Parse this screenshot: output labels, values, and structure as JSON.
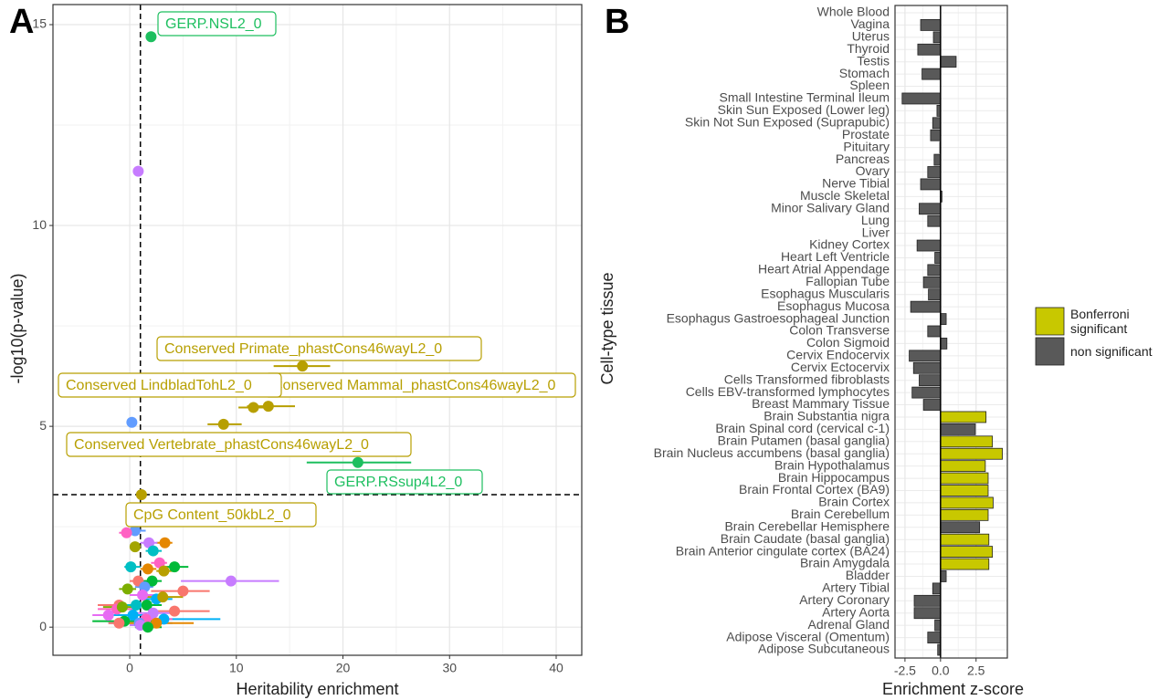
{
  "chart_data": [
    {
      "type": "scatter",
      "panel": "A",
      "xlabel": "Heritability enrichment",
      "ylabel": "-log10(p-value)",
      "xlim": [
        -7.2,
        42.4
      ],
      "ylim": [
        -0.7,
        15.5
      ],
      "xticks": [
        0,
        10,
        20,
        30,
        40
      ],
      "yticks": [
        0,
        5,
        10,
        15
      ],
      "vline": 1,
      "hline": 3.3,
      "grid": true,
      "points": [
        {
          "label": "GERP.NSL2_0",
          "x": 2,
          "y": 14.7,
          "color": "#1dbf5f"
        },
        {
          "x": 0.8,
          "y": 11.35,
          "color": "#c77cff"
        },
        {
          "label": "Conserved Primate_phastCons46wayL2_0",
          "x": 16.2,
          "y": 6.5,
          "xmin": 13.5,
          "xmax": 18.8,
          "color": "#b79f00"
        },
        {
          "label": "Conserved Mammal_phastCons46wayL2_0",
          "x": 13,
          "y": 5.5,
          "xmin": 11,
          "xmax": 15.5,
          "color": "#b79f00"
        },
        {
          "label": "Conserved LindbladTohL2_0",
          "x": 11.6,
          "y": 5.47,
          "xmin": 10.2,
          "xmax": 13,
          "color": "#b79f00"
        },
        {
          "label": "Conserved Vertebrate_phastCons46wayL2_0",
          "x": 8.8,
          "y": 5.05,
          "xmin": 7.3,
          "xmax": 10.5,
          "color": "#b79f00"
        },
        {
          "x": 0.2,
          "y": 5.1,
          "color": "#619cff"
        },
        {
          "label": "GERP.RSsup4L2_0",
          "x": 21.4,
          "y": 4.1,
          "xmin": 16.6,
          "xmax": 26.4,
          "color": "#1dbf5f"
        },
        {
          "label": "CpG Content_50kbL2_0",
          "x": 1.1,
          "y": 3.3,
          "color": "#b79f00"
        },
        {
          "x": 0.5,
          "y": 2.4,
          "xmin": -0.5,
          "xmax": 1.5,
          "color": "#619cff"
        },
        {
          "x": -0.3,
          "y": 2.35,
          "xmin": -1,
          "xmax": 0.5,
          "color": "#ff61c3"
        },
        {
          "x": 3.3,
          "y": 2.1,
          "xmin": 2.5,
          "xmax": 4,
          "color": "#e58700"
        },
        {
          "x": 1.8,
          "y": 2.1,
          "xmin": 1,
          "xmax": 2.6,
          "color": "#c77cff"
        },
        {
          "x": 0.5,
          "y": 2.0,
          "xmin": 0,
          "xmax": 1,
          "color": "#a3a500"
        },
        {
          "x": 2.2,
          "y": 1.9,
          "xmin": 1.5,
          "xmax": 3,
          "color": "#00bfc4"
        },
        {
          "x": 2.8,
          "y": 1.6,
          "xmin": 2,
          "xmax": 3.5,
          "color": "#ff61c3"
        },
        {
          "x": 4.2,
          "y": 1.5,
          "xmin": 3,
          "xmax": 5.5,
          "color": "#00ba38"
        },
        {
          "x": 0.1,
          "y": 1.5,
          "xmin": -0.5,
          "xmax": 1,
          "color": "#00bfc4"
        },
        {
          "x": 1.7,
          "y": 1.45,
          "xmin": 1,
          "xmax": 2.5,
          "color": "#e58700"
        },
        {
          "x": 3.2,
          "y": 1.4,
          "xmin": 2.5,
          "xmax": 4,
          "color": "#b79f00"
        },
        {
          "x": 9.5,
          "y": 1.15,
          "xmin": 4.8,
          "xmax": 14,
          "color": "#c77cff"
        },
        {
          "x": 0.8,
          "y": 1.15,
          "xmin": 0,
          "xmax": 1.6,
          "color": "#f8766d"
        },
        {
          "x": 2.1,
          "y": 1.15,
          "xmin": 1,
          "xmax": 3,
          "color": "#00ba38"
        },
        {
          "x": 1.4,
          "y": 1.0,
          "xmin": 0.5,
          "xmax": 2.2,
          "color": "#619cff"
        },
        {
          "x": -0.2,
          "y": 0.95,
          "xmin": -1,
          "xmax": 0.6,
          "color": "#7cae00"
        },
        {
          "x": 5,
          "y": 0.9,
          "xmin": 2,
          "xmax": 7.5,
          "color": "#f8766d"
        },
        {
          "x": 1.2,
          "y": 0.8,
          "xmin": 0,
          "xmax": 2.5,
          "color": "#e76bf3"
        },
        {
          "x": 2.5,
          "y": 0.7,
          "xmin": 1,
          "xmax": 4,
          "color": "#00b0f6"
        },
        {
          "x": 3.1,
          "y": 0.75,
          "xmin": 1,
          "xmax": 5,
          "color": "#b79f00"
        },
        {
          "x": 1.6,
          "y": 0.55,
          "xmin": 0,
          "xmax": 3,
          "color": "#00ba38"
        },
        {
          "x": -1,
          "y": 0.55,
          "xmin": -3,
          "xmax": 1,
          "color": "#f8766d"
        },
        {
          "x": 0.6,
          "y": 0.55,
          "xmin": -1,
          "xmax": 2,
          "color": "#00bfc4"
        },
        {
          "x": -1.2,
          "y": 0.45,
          "xmin": -3,
          "xmax": 0.5,
          "color": "#ff61c3"
        },
        {
          "x": -0.7,
          "y": 0.5,
          "xmin": -2.5,
          "xmax": 1,
          "color": "#7cae00"
        },
        {
          "x": 4.2,
          "y": 0.4,
          "xmin": 2,
          "xmax": 7.5,
          "color": "#f8766d"
        },
        {
          "x": 2.2,
          "y": 0.35,
          "xmin": 0,
          "xmax": 4.5,
          "color": "#c77cff"
        },
        {
          "x": -2,
          "y": 0.3,
          "xmin": -3.5,
          "xmax": 0,
          "color": "#e76bf3"
        },
        {
          "x": 0.3,
          "y": 0.3,
          "xmin": -1.5,
          "xmax": 2,
          "color": "#00b0f6"
        },
        {
          "x": 3.2,
          "y": 0.2,
          "xmin": 0,
          "xmax": 8.5,
          "color": "#00b0f6"
        },
        {
          "x": 1.5,
          "y": 0.2,
          "xmin": -1,
          "xmax": 4,
          "color": "#ff61c3"
        },
        {
          "x": -0.5,
          "y": 0.15,
          "xmin": -3.5,
          "xmax": 2.5,
          "color": "#00ba38"
        },
        {
          "x": 0.9,
          "y": 0.1,
          "xmin": -2,
          "xmax": 4,
          "color": "#619cff"
        },
        {
          "x": 2.5,
          "y": 0.1,
          "xmin": -0.5,
          "xmax": 6,
          "color": "#e58700"
        },
        {
          "x": -1,
          "y": 0.1,
          "xmin": -2,
          "xmax": 0,
          "color": "#f8766d"
        },
        {
          "x": 1.0,
          "y": 0.05,
          "xmin": 0,
          "xmax": 2,
          "color": "#c77cff"
        },
        {
          "x": 1.7,
          "y": 0.0,
          "xmin": 0.5,
          "xmax": 3,
          "color": "#00ba38"
        }
      ]
    },
    {
      "type": "barh",
      "panel": "B",
      "xlabel": "Enrichment z-score",
      "ylabel": "Cell-type tissue",
      "xlim": [
        -3.2,
        4.7
      ],
      "xticks": [
        -2.5,
        {
          "value": 0,
          "label": "0.0"
        },
        2.5
      ],
      "grid": true,
      "legend": [
        {
          "name": "Bonferroni significant",
          "color": "#c8c800"
        },
        {
          "name": "non significant",
          "color": "#595959"
        }
      ],
      "categories": [
        "Whole Blood",
        "Vagina",
        "Uterus",
        "Thyroid",
        "Testis",
        "Stomach",
        "Spleen",
        "Small Intestine Terminal Ileum",
        "Skin Sun Exposed (Lower leg)",
        "Skin Not Sun Exposed (Suprapubic)",
        "Prostate",
        "Pituitary",
        "Pancreas",
        "Ovary",
        "Nerve Tibial",
        "Muscle Skeletal",
        "Minor Salivary Gland",
        "Lung",
        "Liver",
        "Kidney Cortex",
        "Heart Left Ventricle",
        "Heart Atrial Appendage",
        "Fallopian Tube",
        "Esophagus Muscularis",
        "Esophagus Mucosa",
        "Esophagus Gastroesophageal Junction",
        "Colon Transverse",
        "Colon Sigmoid",
        "Cervix Endocervix",
        "Cervix Ectocervix",
        "Cells Transformed fibroblasts",
        "Cells EBV-transformed lymphocytes",
        "Breast Mammary Tissue",
        "Brain Substantia nigra",
        "Brain Spinal cord (cervical c-1)",
        "Brain Putamen (basal ganglia)",
        "Brain Nucleus accumbens (basal ganglia)",
        "Brain Hypothalamus",
        "Brain Hippocampus",
        "Brain Frontal Cortex (BA9)",
        "Brain Cortex",
        "Brain Cerebellum",
        "Brain Cerebellar Hemisphere",
        "Brain Caudate (basal ganglia)",
        "Brain Anterior cingulate cortex (BA24)",
        "Brain Amygdala",
        "Bladder",
        "Artery Tibial",
        "Artery Coronary",
        "Artery Aorta",
        "Adrenal Gland",
        "Adipose Visceral (Omentum)",
        "Adipose Subcutaneous"
      ],
      "values": [
        0,
        -1.4,
        -0.5,
        -1.6,
        1.1,
        -1.3,
        0,
        -2.7,
        -0.25,
        -0.55,
        -0.7,
        -0.05,
        -0.45,
        -0.9,
        -1.4,
        0.1,
        -1.5,
        -0.9,
        0,
        -1.65,
        -0.4,
        -0.9,
        -1.2,
        -0.85,
        -2.1,
        0.4,
        -0.9,
        0.45,
        -2.2,
        -1.9,
        -1.5,
        -2.0,
        -1.2,
        3.2,
        2.45,
        3.65,
        4.35,
        3.15,
        3.35,
        3.35,
        3.7,
        3.35,
        2.75,
        3.4,
        3.65,
        3.4,
        0.4,
        -0.55,
        -1.85,
        -1.85,
        -0.4,
        -0.9,
        -0.2
      ],
      "groups": [
        1,
        1,
        1,
        1,
        1,
        1,
        1,
        1,
        1,
        1,
        1,
        1,
        1,
        1,
        1,
        1,
        1,
        1,
        1,
        1,
        1,
        1,
        1,
        1,
        1,
        1,
        1,
        1,
        1,
        1,
        1,
        1,
        1,
        0,
        1,
        0,
        0,
        0,
        0,
        0,
        0,
        0,
        1,
        0,
        0,
        0,
        1,
        1,
        1,
        1,
        1,
        1,
        1
      ]
    }
  ]
}
